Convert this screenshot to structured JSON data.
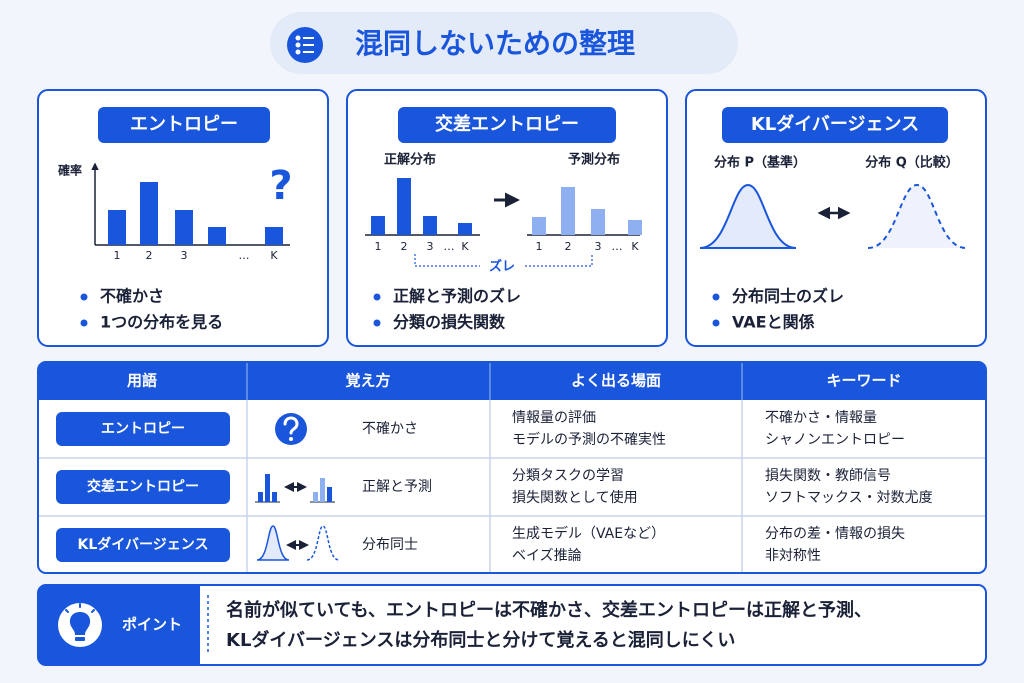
{
  "header": {
    "title": "混同しないための整理"
  },
  "cards": [
    {
      "title": "エントロピー",
      "axis_label": "確率",
      "symbol": "?",
      "x_labels": [
        "1",
        "2",
        "3",
        "…",
        "K"
      ],
      "bullets": [
        "不確かさ",
        "1つの分布を見る"
      ]
    },
    {
      "title": "交差エントロピー",
      "left_label": "正解分布",
      "right_label": "予測分布",
      "left_x_labels": [
        "1",
        "2",
        "3",
        "…",
        "K"
      ],
      "right_x_labels": [
        "1",
        "2",
        "3",
        "…",
        "K"
      ],
      "gap_label": "ズレ",
      "bullets": [
        "正解と予測のズレ",
        "分類の損失関数"
      ]
    },
    {
      "title": "KLダイバージェンス",
      "left_label": "分布 P（基準）",
      "right_label": "分布 Q（比較）",
      "bullets": [
        "分布同士のズレ",
        "VAEと関係"
      ]
    }
  ],
  "table": {
    "headers": [
      "用語",
      "覚え方",
      "よく出る場面",
      "キーワード"
    ],
    "rows": [
      {
        "term": "エントロピー",
        "memo": "不確かさ",
        "scenes": [
          "情報量の評価",
          "モデルの予測の不確実性"
        ],
        "keywords": [
          "不確かさ・情報量",
          "シャノンエントロピー"
        ]
      },
      {
        "term": "交差エントロピー",
        "memo": "正解と予測",
        "scenes": [
          "分類タスクの学習",
          "損失関数として使用"
        ],
        "keywords": [
          "損失関数・教師信号",
          "ソフトマックス・対数尤度"
        ]
      },
      {
        "term": "KLダイバージェンス",
        "memo": "分布同士",
        "scenes": [
          "生成モデル（VAEなど）",
          "ベイズ推論"
        ],
        "keywords": [
          "分布の差・情報の損失",
          "非対称性"
        ]
      }
    ]
  },
  "point": {
    "label": "ポイント",
    "lines": [
      "名前が似ていても、エントロピーは不確かさ、交差エントロピーは正解と予測、",
      "KLダイバージェンスは分布同士と分けて覚えると混同しにくい"
    ]
  }
}
